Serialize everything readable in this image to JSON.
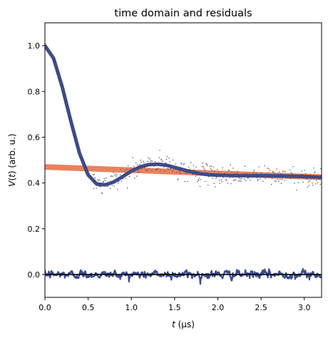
{
  "chart_data": {
    "type": "line",
    "title": "time domain and residuals",
    "xlabel_parts": [
      "t",
      " (µs)"
    ],
    "ylabel_parts": [
      "V",
      "(",
      "t",
      ") (arb. u.)"
    ],
    "xlim": [
      0.0,
      3.2
    ],
    "ylim": [
      -0.1,
      1.1
    ],
    "x_ticks": [
      0.0,
      0.5,
      1.0,
      1.5,
      2.0,
      2.5,
      3.0
    ],
    "x_tick_labels": [
      "0.0",
      "0.5",
      "1.0",
      "1.5",
      "2.0",
      "2.5",
      "3.0"
    ],
    "y_ticks": [
      0.0,
      0.2,
      0.4,
      0.6,
      0.8,
      1.0
    ],
    "y_tick_labels": [
      "0.0",
      "0.2",
      "0.4",
      "0.6",
      "0.8",
      "1.0"
    ],
    "grid": false,
    "colors": {
      "fit": "#3b4a8c",
      "background": "#e8825e",
      "data": "#555555",
      "residual": "#3b4a8c",
      "zero_line": "#000000"
    },
    "series": [
      {
        "role": "background",
        "x": [
          0.0,
          3.2
        ],
        "y": [
          0.47,
          0.425
        ]
      },
      {
        "role": "fit",
        "x": [
          0.0,
          0.1,
          0.2,
          0.3,
          0.4,
          0.5,
          0.6,
          0.7,
          0.8,
          0.9,
          1.0,
          1.1,
          1.2,
          1.3,
          1.4,
          1.5,
          1.6,
          1.7,
          1.8,
          1.9,
          2.0,
          2.2,
          2.4,
          2.6,
          2.8,
          3.0,
          3.2
        ],
        "y": [
          1.0,
          0.945,
          0.82,
          0.67,
          0.53,
          0.435,
          0.395,
          0.392,
          0.405,
          0.428,
          0.452,
          0.47,
          0.48,
          0.482,
          0.478,
          0.468,
          0.458,
          0.448,
          0.44,
          0.436,
          0.434,
          0.432,
          0.432,
          0.431,
          0.43,
          0.428,
          0.425
        ]
      },
      {
        "role": "data",
        "generator": "fit_plus_noise",
        "x_start": 0.0,
        "x_end": 3.2,
        "count": 420,
        "noise": [
          0.006,
          0.022
        ]
      },
      {
        "role": "residual",
        "generator": "noise_band",
        "x_start": 0.0,
        "x_end": 3.2,
        "count": 640,
        "amplitude": 0.03
      },
      {
        "role": "zero_line",
        "x": [
          0.0,
          3.2
        ],
        "y": [
          0.0,
          0.0
        ]
      }
    ]
  }
}
